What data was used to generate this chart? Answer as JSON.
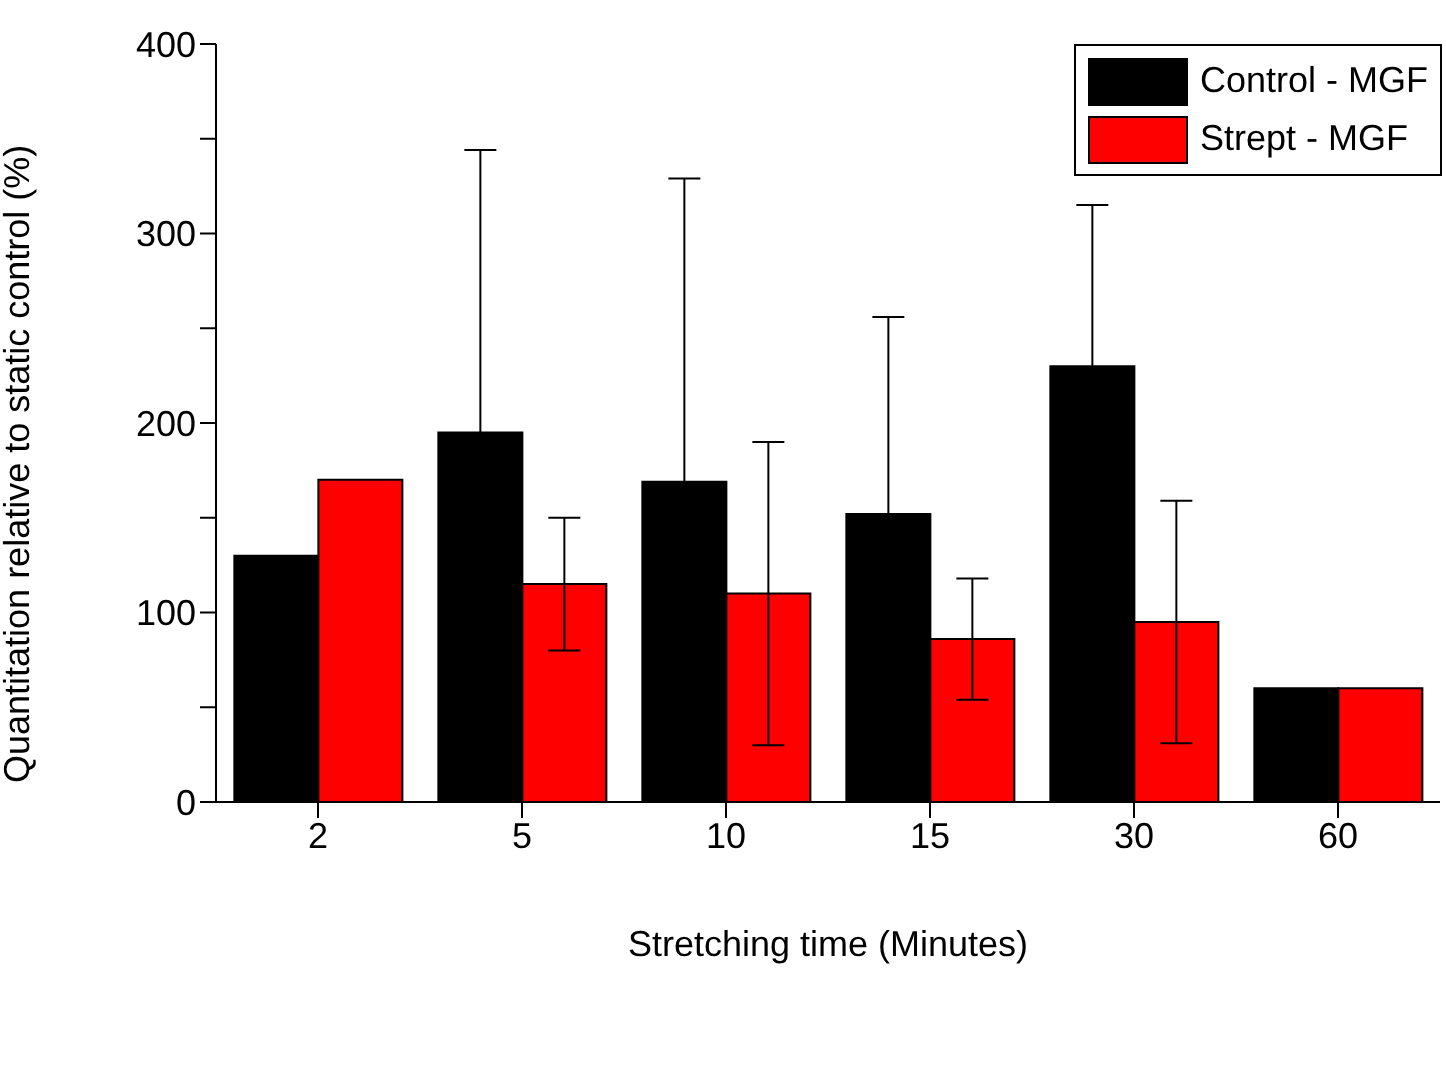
{
  "chart_data": {
    "type": "bar",
    "xlabel": "Stretching time (Minutes)",
    "ylabel": "Quantitation relative to static control (%)",
    "categories": [
      "2",
      "5",
      "10",
      "15",
      "30",
      "60"
    ],
    "series": [
      {
        "name": "Control - MGF",
        "color": "#000000",
        "values": [
          130,
          195,
          169,
          152,
          230,
          60
        ],
        "errors": [
          null,
          149,
          160,
          104,
          85,
          null
        ]
      },
      {
        "name": "Strept - MGF",
        "color": "#ff0000",
        "values": [
          170,
          115,
          110,
          86,
          95,
          60
        ],
        "errors": [
          null,
          35,
          80,
          32,
          64,
          null
        ]
      }
    ],
    "ylim": [
      0,
      400
    ],
    "yticks": [
      0,
      {
        "value": 50,
        "label": null
      },
      100,
      {
        "value": 150,
        "label": null
      },
      200,
      {
        "value": 250,
        "label": null
      },
      300,
      {
        "value": 350,
        "label": null
      },
      400
    ],
    "grid": false,
    "legend": "top right"
  }
}
